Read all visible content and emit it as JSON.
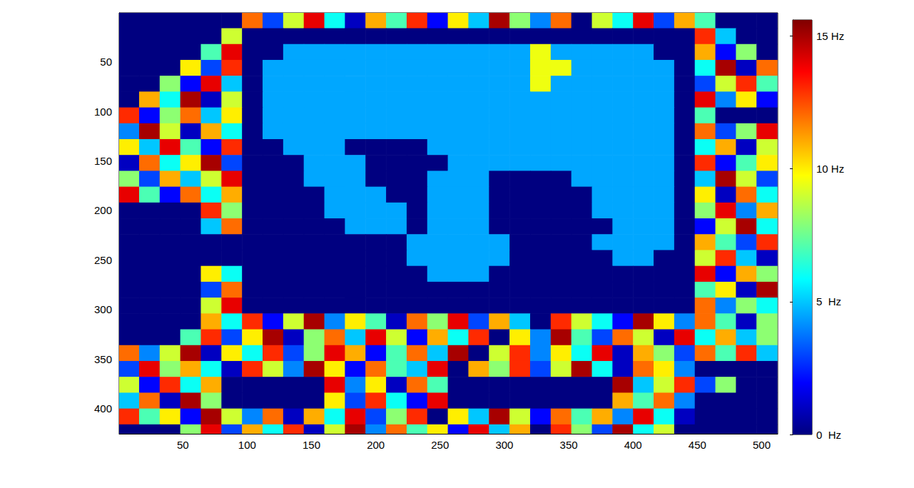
{
  "chart_data": {
    "type": "heatmap",
    "x": [
      8,
      24,
      40,
      56,
      72,
      88,
      104,
      120,
      136,
      152,
      168,
      184,
      200,
      216,
      232,
      248,
      264,
      280,
      296,
      312,
      328,
      344,
      360,
      376,
      392,
      408,
      424,
      440,
      456,
      472,
      488,
      504
    ],
    "y": [
      8,
      24,
      40,
      56,
      72,
      88,
      104,
      120,
      136,
      152,
      168,
      184,
      200,
      216,
      232,
      248,
      264,
      280,
      296,
      312,
      328,
      344,
      360,
      376,
      392,
      408,
      424
    ],
    "cells": [
      [
        0,
        0,
        0,
        0,
        0,
        0,
        12,
        3,
        9,
        14,
        6,
        1,
        11,
        7,
        13,
        2,
        10,
        5,
        15,
        8,
        4,
        12,
        0,
        9,
        6,
        14,
        3,
        11,
        7,
        0,
        0,
        0
      ],
      [
        0,
        0,
        0,
        0,
        0,
        9,
        0,
        0,
        0,
        0,
        0,
        0,
        0,
        0,
        0,
        0,
        0,
        0,
        0,
        0,
        0,
        0,
        0,
        0,
        0,
        0,
        0,
        0,
        13,
        5,
        0,
        0
      ],
      [
        0,
        0,
        0,
        0,
        7,
        14,
        0,
        0,
        4.5,
        4.5,
        4.5,
        4.5,
        4.5,
        4.5,
        4.5,
        4.5,
        4.5,
        4.5,
        4.5,
        4.5,
        9.5,
        4.5,
        4.5,
        4.5,
        4.5,
        4.5,
        0,
        0,
        11,
        2,
        8,
        0
      ],
      [
        0,
        0,
        0,
        10,
        3,
        13,
        0,
        4.5,
        4.5,
        4.5,
        4.5,
        4.5,
        4.5,
        4.5,
        4.5,
        4.5,
        4.5,
        4.5,
        4.5,
        4.5,
        9.5,
        9.5,
        4.5,
        4.5,
        4.5,
        4.5,
        4.5,
        0,
        6,
        15,
        1,
        12
      ],
      [
        0,
        0,
        8,
        2,
        14,
        5,
        0,
        4.5,
        4.5,
        4.5,
        4.5,
        4.5,
        4.5,
        4.5,
        4.5,
        4.5,
        4.5,
        4.5,
        4.5,
        4.5,
        9.5,
        4.5,
        4.5,
        4.5,
        4.5,
        4.5,
        4.5,
        0,
        3,
        9,
        13,
        7
      ],
      [
        0,
        11,
        6,
        15,
        1,
        9,
        0,
        4.5,
        4.5,
        4.5,
        4.5,
        4.5,
        4.5,
        4.5,
        4.5,
        4.5,
        4.5,
        4.5,
        4.5,
        4.5,
        4.5,
        4.5,
        4.5,
        4.5,
        4.5,
        4.5,
        4.5,
        0,
        14,
        4,
        10,
        2
      ],
      [
        13,
        2,
        8,
        12,
        5,
        10,
        0,
        4.5,
        4.5,
        4.5,
        4.5,
        4.5,
        4.5,
        4.5,
        4.5,
        4.5,
        4.5,
        4.5,
        4.5,
        4.5,
        4.5,
        4.5,
        4.5,
        4.5,
        4.5,
        4.5,
        4.5,
        0,
        7,
        0,
        0,
        0
      ],
      [
        4,
        15,
        9,
        1,
        11,
        6,
        0,
        4.5,
        4.5,
        4.5,
        4.5,
        4.5,
        4.5,
        4.5,
        4.5,
        4.5,
        4.5,
        4.5,
        4.5,
        4.5,
        4.5,
        4.5,
        4.5,
        4.5,
        4.5,
        4.5,
        4.5,
        0,
        12,
        3,
        8,
        14
      ],
      [
        10,
        5,
        14,
        7,
        2,
        13,
        0,
        0,
        4.5,
        4.5,
        4.5,
        0,
        0,
        0,
        0,
        4.5,
        4.5,
        4.5,
        4.5,
        4.5,
        4.5,
        4.5,
        4.5,
        4.5,
        4.5,
        4.5,
        4.5,
        0,
        6,
        11,
        1,
        9
      ],
      [
        1,
        12,
        6,
        10,
        15,
        3,
        0,
        0,
        0,
        4.5,
        4.5,
        4.5,
        0,
        0,
        0,
        0,
        4.5,
        4.5,
        4.5,
        4.5,
        4.5,
        4.5,
        4.5,
        4.5,
        4.5,
        4.5,
        4.5,
        0,
        13,
        2,
        7,
        10
      ],
      [
        8,
        3,
        11,
        5,
        9,
        14,
        0,
        0,
        0,
        4.5,
        4.5,
        4.5,
        0,
        0,
        0,
        4.5,
        4.5,
        4.5,
        0,
        0,
        0,
        0,
        4.5,
        4.5,
        4.5,
        4.5,
        4.5,
        0,
        5,
        15,
        9,
        3
      ],
      [
        14,
        7,
        2,
        12,
        6,
        11,
        0,
        0,
        0,
        0,
        4.5,
        4.5,
        4.5,
        0,
        0,
        4.5,
        4.5,
        4.5,
        0,
        0,
        0,
        0,
        0,
        4.5,
        4.5,
        4.5,
        4.5,
        0,
        10,
        1,
        12,
        6
      ],
      [
        0,
        0,
        0,
        0,
        13,
        8,
        0,
        0,
        0,
        0,
        4.5,
        4.5,
        4.5,
        4.5,
        0,
        4.5,
        4.5,
        4.5,
        0,
        0,
        0,
        0,
        0,
        4.5,
        4.5,
        4.5,
        4.5,
        0,
        8,
        14,
        4,
        11
      ],
      [
        0,
        0,
        0,
        0,
        5,
        12,
        0,
        0,
        0,
        0,
        0,
        4.5,
        4.5,
        4.5,
        0,
        4.5,
        4.5,
        4.5,
        0,
        0,
        0,
        0,
        0,
        0,
        4.5,
        4.5,
        4.5,
        0,
        2,
        9,
        15,
        6
      ],
      [
        0,
        0,
        0,
        0,
        0,
        0,
        0,
        0,
        0,
        0,
        0,
        0,
        0,
        0,
        4.5,
        4.5,
        4.5,
        4.5,
        4.5,
        0,
        0,
        0,
        0,
        4.5,
        4.5,
        4.5,
        4.5,
        0,
        11,
        7,
        3,
        13
      ],
      [
        0,
        0,
        0,
        0,
        0,
        0,
        0,
        0,
        0,
        0,
        0,
        0,
        0,
        0,
        4.5,
        4.5,
        4.5,
        4.5,
        4.5,
        0,
        0,
        0,
        0,
        0,
        4.5,
        4.5,
        0,
        0,
        9,
        13,
        5,
        1
      ],
      [
        0,
        0,
        0,
        0,
        10,
        6,
        0,
        0,
        0,
        0,
        0,
        0,
        0,
        0,
        0,
        4.5,
        4.5,
        4.5,
        0,
        0,
        0,
        0,
        0,
        0,
        0,
        0,
        0,
        0,
        14,
        2,
        11,
        8
      ],
      [
        0,
        0,
        0,
        0,
        3,
        12,
        0,
        0,
        0,
        0,
        0,
        0,
        0,
        0,
        0,
        0,
        0,
        0,
        0,
        0,
        0,
        0,
        0,
        0,
        0,
        0,
        0,
        0,
        7,
        10,
        1,
        15
      ],
      [
        0,
        0,
        0,
        0,
        9,
        14,
        0,
        0,
        0,
        0,
        0,
        0,
        0,
        0,
        0,
        0,
        0,
        0,
        0,
        0,
        0,
        0,
        0,
        0,
        0,
        0,
        0,
        0,
        12,
        4,
        8,
        6
      ],
      [
        0,
        0,
        0,
        0,
        11,
        6,
        13,
        2,
        9,
        15,
        4,
        10,
        7,
        1,
        12,
        8,
        14,
        3,
        11,
        5,
        0,
        13,
        9,
        6,
        2,
        15,
        10,
        4,
        12,
        7,
        1,
        8
      ],
      [
        0,
        0,
        0,
        7,
        13,
        3,
        10,
        15,
        1,
        8,
        12,
        5,
        14,
        9,
        2,
        11,
        6,
        13,
        0,
        10,
        4,
        15,
        7,
        3,
        12,
        9,
        1,
        14,
        6,
        11,
        5,
        8
      ],
      [
        12,
        4,
        9,
        15,
        1,
        10,
        6,
        13,
        3,
        8,
        14,
        11,
        2,
        7,
        12,
        5,
        15,
        0,
        9,
        13,
        4,
        10,
        6,
        14,
        1,
        11,
        8,
        3,
        12,
        7,
        13,
        5
      ],
      [
        3,
        14,
        8,
        11,
        6,
        1,
        13,
        9,
        4,
        15,
        10,
        2,
        12,
        7,
        5,
        14,
        0,
        11,
        8,
        13,
        3,
        9,
        15,
        6,
        1,
        12,
        10,
        4,
        0,
        0,
        0,
        0
      ],
      [
        9,
        2,
        13,
        6,
        11,
        0,
        0,
        0,
        0,
        0,
        14,
        4,
        10,
        1,
        12,
        7,
        0,
        0,
        0,
        0,
        0,
        0,
        0,
        0,
        15,
        5,
        9,
        13,
        3,
        8,
        0,
        0
      ],
      [
        5,
        12,
        1,
        15,
        8,
        0,
        0,
        0,
        0,
        0,
        10,
        3,
        13,
        6,
        2,
        14,
        0,
        0,
        0,
        0,
        0,
        0,
        0,
        0,
        11,
        7,
        12,
        4,
        0,
        0,
        0,
        0
      ],
      [
        13,
        7,
        10,
        2,
        15,
        9,
        4,
        12,
        1,
        11,
        6,
        14,
        3,
        8,
        13,
        0,
        10,
        5,
        15,
        9,
        2,
        12,
        7,
        11,
        4,
        14,
        6,
        1,
        0,
        0,
        0,
        0
      ],
      [
        0,
        0,
        0,
        8,
        14,
        3,
        11,
        6,
        13,
        1,
        9,
        15,
        4,
        12,
        7,
        10,
        2,
        14,
        5,
        11,
        0,
        13,
        8,
        3,
        15,
        6,
        9,
        0,
        0,
        0,
        0,
        0
      ]
    ],
    "xlim": [
      0.5,
      512.5
    ],
    "ylim": [
      0.5,
      425.5
    ],
    "xticks": [
      50,
      100,
      150,
      200,
      250,
      300,
      350,
      400,
      450,
      500
    ],
    "yticks": [
      50,
      100,
      150,
      200,
      250,
      300,
      350,
      400
    ],
    "clim": [
      0,
      15.6
    ],
    "cticks": [
      {
        "value": 0,
        "label": "0  Hz"
      },
      {
        "value": 5,
        "label": "5  Hz"
      },
      {
        "value": 10,
        "label": "10 Hz"
      },
      {
        "value": 15,
        "label": "15 Hz"
      }
    ],
    "grid": false
  }
}
